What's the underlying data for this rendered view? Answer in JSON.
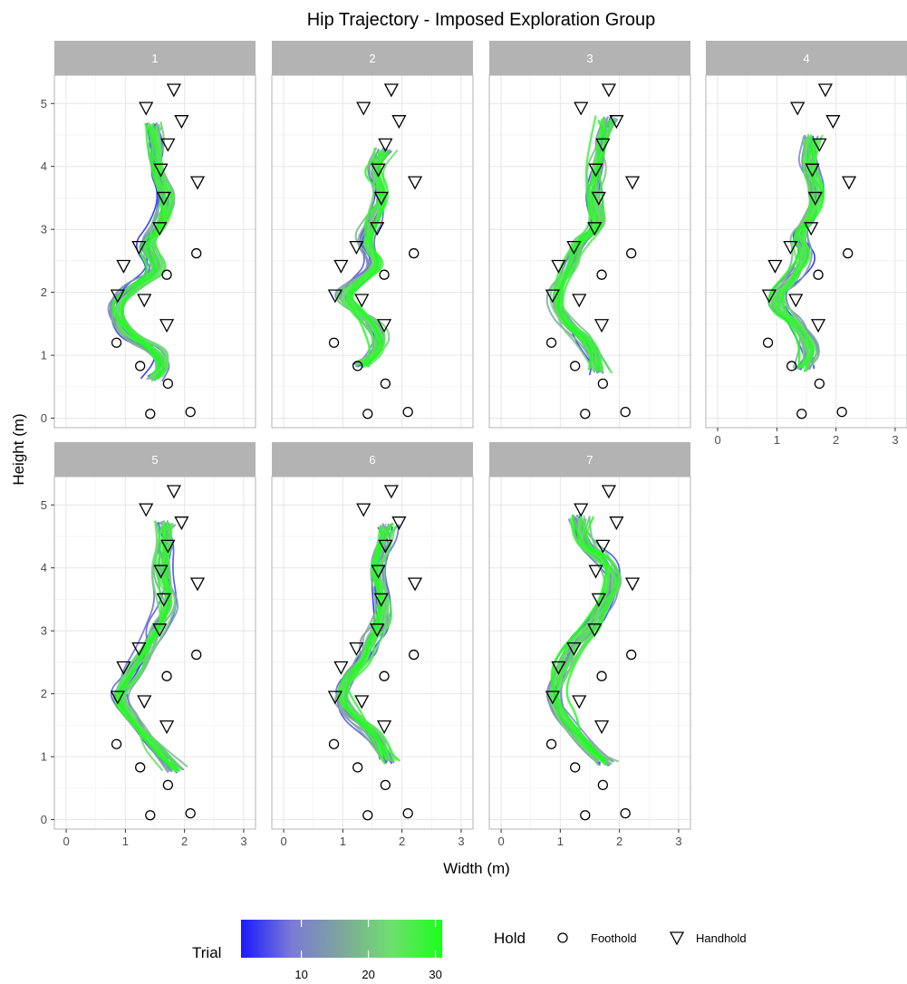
{
  "chart_data": {
    "type": "line",
    "title": "Hip Trajectory  - Imposed Exploration Group",
    "xlabel": "Width (m)",
    "ylabel": "Height (m)",
    "xlim": [
      -0.2,
      3.2
    ],
    "ylim": [
      -0.15,
      5.45
    ],
    "x_ticks": [
      "0",
      "1",
      "2",
      "3"
    ],
    "y_ticks": [
      "0",
      "1",
      "2",
      "3",
      "4",
      "5"
    ],
    "facet_layout": "4 columns, 2 rows",
    "grid": true,
    "facets": [
      "1",
      "2",
      "3",
      "4",
      "5",
      "6",
      "7"
    ],
    "footholds": [
      {
        "x": 1.42,
        "y": 0.07
      },
      {
        "x": 2.1,
        "y": 0.1
      },
      {
        "x": 1.72,
        "y": 0.55
      },
      {
        "x": 1.25,
        "y": 0.83
      },
      {
        "x": 0.85,
        "y": 1.2
      },
      {
        "x": 1.7,
        "y": 2.28
      },
      {
        "x": 2.2,
        "y": 2.62
      }
    ],
    "handholds": [
      {
        "x": 1.32,
        "y": 1.88
      },
      {
        "x": 1.7,
        "y": 1.48
      },
      {
        "x": 0.87,
        "y": 1.95
      },
      {
        "x": 0.97,
        "y": 2.42
      },
      {
        "x": 1.23,
        "y": 2.72
      },
      {
        "x": 1.58,
        "y": 3.02
      },
      {
        "x": 1.65,
        "y": 3.5
      },
      {
        "x": 1.6,
        "y": 3.95
      },
      {
        "x": 1.72,
        "y": 4.35
      },
      {
        "x": 1.95,
        "y": 4.72
      },
      {
        "x": 1.35,
        "y": 4.93
      },
      {
        "x": 1.82,
        "y": 5.22
      },
      {
        "x": 2.22,
        "y": 3.75
      }
    ],
    "trial_range": [
      1,
      31
    ],
    "trials_per_facet": 30,
    "mean_paths": [
      [
        [
          1.5,
          0.65
        ],
        [
          1.72,
          0.85
        ],
        [
          1.55,
          1.1
        ],
        [
          1.05,
          1.3
        ],
        [
          0.8,
          1.75
        ],
        [
          1.15,
          2.1
        ],
        [
          1.6,
          2.35
        ],
        [
          1.35,
          2.75
        ],
        [
          1.6,
          3.05
        ],
        [
          1.75,
          3.5
        ],
        [
          1.55,
          3.9
        ],
        [
          1.55,
          4.3
        ],
        [
          1.5,
          4.65
        ]
      ],
      [
        [
          1.35,
          0.85
        ],
        [
          1.65,
          1.1
        ],
        [
          1.55,
          1.5
        ],
        [
          1.25,
          1.7
        ],
        [
          1.0,
          1.95
        ],
        [
          1.3,
          2.2
        ],
        [
          1.6,
          2.45
        ],
        [
          1.35,
          2.8
        ],
        [
          1.55,
          3.15
        ],
        [
          1.7,
          3.55
        ],
        [
          1.5,
          3.95
        ],
        [
          1.7,
          4.25
        ]
      ],
      [
        [
          1.65,
          0.75
        ],
        [
          1.5,
          1.2
        ],
        [
          1.05,
          1.55
        ],
        [
          0.9,
          2.0
        ],
        [
          1.15,
          2.4
        ],
        [
          1.3,
          2.8
        ],
        [
          1.7,
          3.05
        ],
        [
          1.55,
          3.5
        ],
        [
          1.6,
          3.95
        ],
        [
          1.7,
          4.35
        ],
        [
          1.8,
          4.75
        ]
      ],
      [
        [
          1.45,
          0.8
        ],
        [
          1.6,
          1.1
        ],
        [
          1.35,
          1.5
        ],
        [
          1.05,
          1.7
        ],
        [
          0.95,
          1.95
        ],
        [
          1.25,
          2.2
        ],
        [
          1.5,
          2.6
        ],
        [
          1.35,
          2.9
        ],
        [
          1.6,
          3.2
        ],
        [
          1.7,
          3.6
        ],
        [
          1.5,
          4.0
        ],
        [
          1.6,
          4.45
        ]
      ],
      [
        [
          1.85,
          0.8
        ],
        [
          1.5,
          1.15
        ],
        [
          1.1,
          1.6
        ],
        [
          0.85,
          1.95
        ],
        [
          1.15,
          2.35
        ],
        [
          1.35,
          2.7
        ],
        [
          1.55,
          3.05
        ],
        [
          1.75,
          3.45
        ],
        [
          1.65,
          3.95
        ],
        [
          1.7,
          4.4
        ],
        [
          1.65,
          4.7
        ]
      ],
      [
        [
          1.75,
          0.95
        ],
        [
          1.55,
          1.35
        ],
        [
          1.15,
          1.65
        ],
        [
          0.95,
          1.95
        ],
        [
          1.1,
          2.25
        ],
        [
          1.35,
          2.55
        ],
        [
          1.45,
          2.85
        ],
        [
          1.65,
          3.05
        ],
        [
          1.7,
          3.5
        ],
        [
          1.55,
          3.95
        ],
        [
          1.7,
          4.4
        ],
        [
          1.75,
          4.65
        ]
      ],
      [
        [
          1.75,
          0.9
        ],
        [
          1.45,
          1.15
        ],
        [
          1.05,
          1.6
        ],
        [
          0.85,
          1.95
        ],
        [
          1.05,
          2.4
        ],
        [
          1.25,
          2.8
        ],
        [
          1.55,
          3.05
        ],
        [
          1.75,
          3.4
        ],
        [
          1.95,
          3.8
        ],
        [
          1.75,
          4.15
        ],
        [
          1.4,
          4.35
        ],
        [
          1.35,
          4.8
        ]
      ]
    ]
  },
  "legend": {
    "trial_title": "Trial",
    "trial_ticks": [
      "10",
      "20",
      "30"
    ],
    "trial_tick_values": [
      10,
      20,
      30
    ],
    "gradient_colors": [
      "#1a1aff",
      "#7a7ad6",
      "#7fa69a",
      "#6ee06e",
      "#1aff1a"
    ],
    "hold_title": "Hold",
    "foothold_label": "Foothold",
    "handhold_label": "Handhold"
  },
  "colors": {
    "strip_fill": "#b3b3b3",
    "grid_major": "#e6e6e6",
    "grid_minor": "#f2f2f2",
    "panel_border": "#b3b3b3"
  }
}
